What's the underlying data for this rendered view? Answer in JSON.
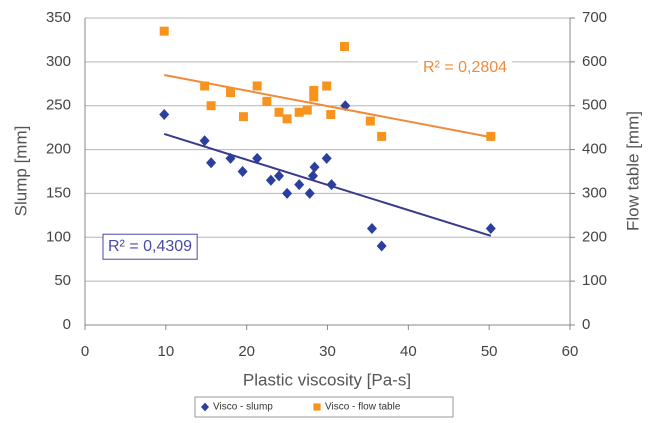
{
  "chart_data": {
    "type": "scatter",
    "x_label": "Plastic viscosity [Pa-s]",
    "y_label": "Slump [mm]",
    "y2_label": "Flow table [mm]",
    "xlim": [
      0,
      60
    ],
    "xticks": [
      0,
      10,
      20,
      30,
      40,
      50,
      60
    ],
    "ylim": [
      0,
      350
    ],
    "yticks": [
      0,
      50,
      100,
      150,
      200,
      250,
      300,
      350
    ],
    "y2lim": [
      0,
      700
    ],
    "y2ticks": [
      0,
      100,
      200,
      300,
      400,
      500,
      600,
      700
    ],
    "grid": true,
    "legend": "bottom",
    "series": [
      {
        "name": "Visco - slump",
        "color": "#2b3f9e",
        "marker": "diamond",
        "trendline": true,
        "trend_color": "#3a3a8c",
        "annotation": "R² = 0,4309",
        "x": [
          9.8,
          14.8,
          15.6,
          18,
          19.5,
          21.3,
          23,
          24,
          25,
          26.5,
          27.8,
          28.2,
          28.4,
          29.9,
          30.5,
          32.2,
          35.5,
          36.7,
          50.2
        ],
        "values": [
          240,
          210,
          185,
          190,
          175,
          190,
          165,
          170,
          150,
          160,
          150,
          170,
          180,
          190,
          160,
          250,
          110,
          90,
          110
        ]
      },
      {
        "name": "Visco - flow table",
        "color": "#f7941d",
        "marker": "square",
        "axis": "y2",
        "trendline": true,
        "trend_color": "#f08a3c",
        "annotation": "R² = 0,2804",
        "x": [
          9.8,
          14.8,
          15.6,
          18,
          19.6,
          21.3,
          22.5,
          24,
          25,
          26.5,
          27.5,
          28.3,
          28.3,
          29.9,
          30.4,
          32.1,
          35.3,
          36.7,
          50.2
        ],
        "values": [
          670,
          545,
          500,
          530,
          475,
          545,
          510,
          485,
          470,
          485,
          490,
          520,
          535,
          545,
          480,
          635,
          465,
          430,
          430
        ]
      }
    ]
  }
}
